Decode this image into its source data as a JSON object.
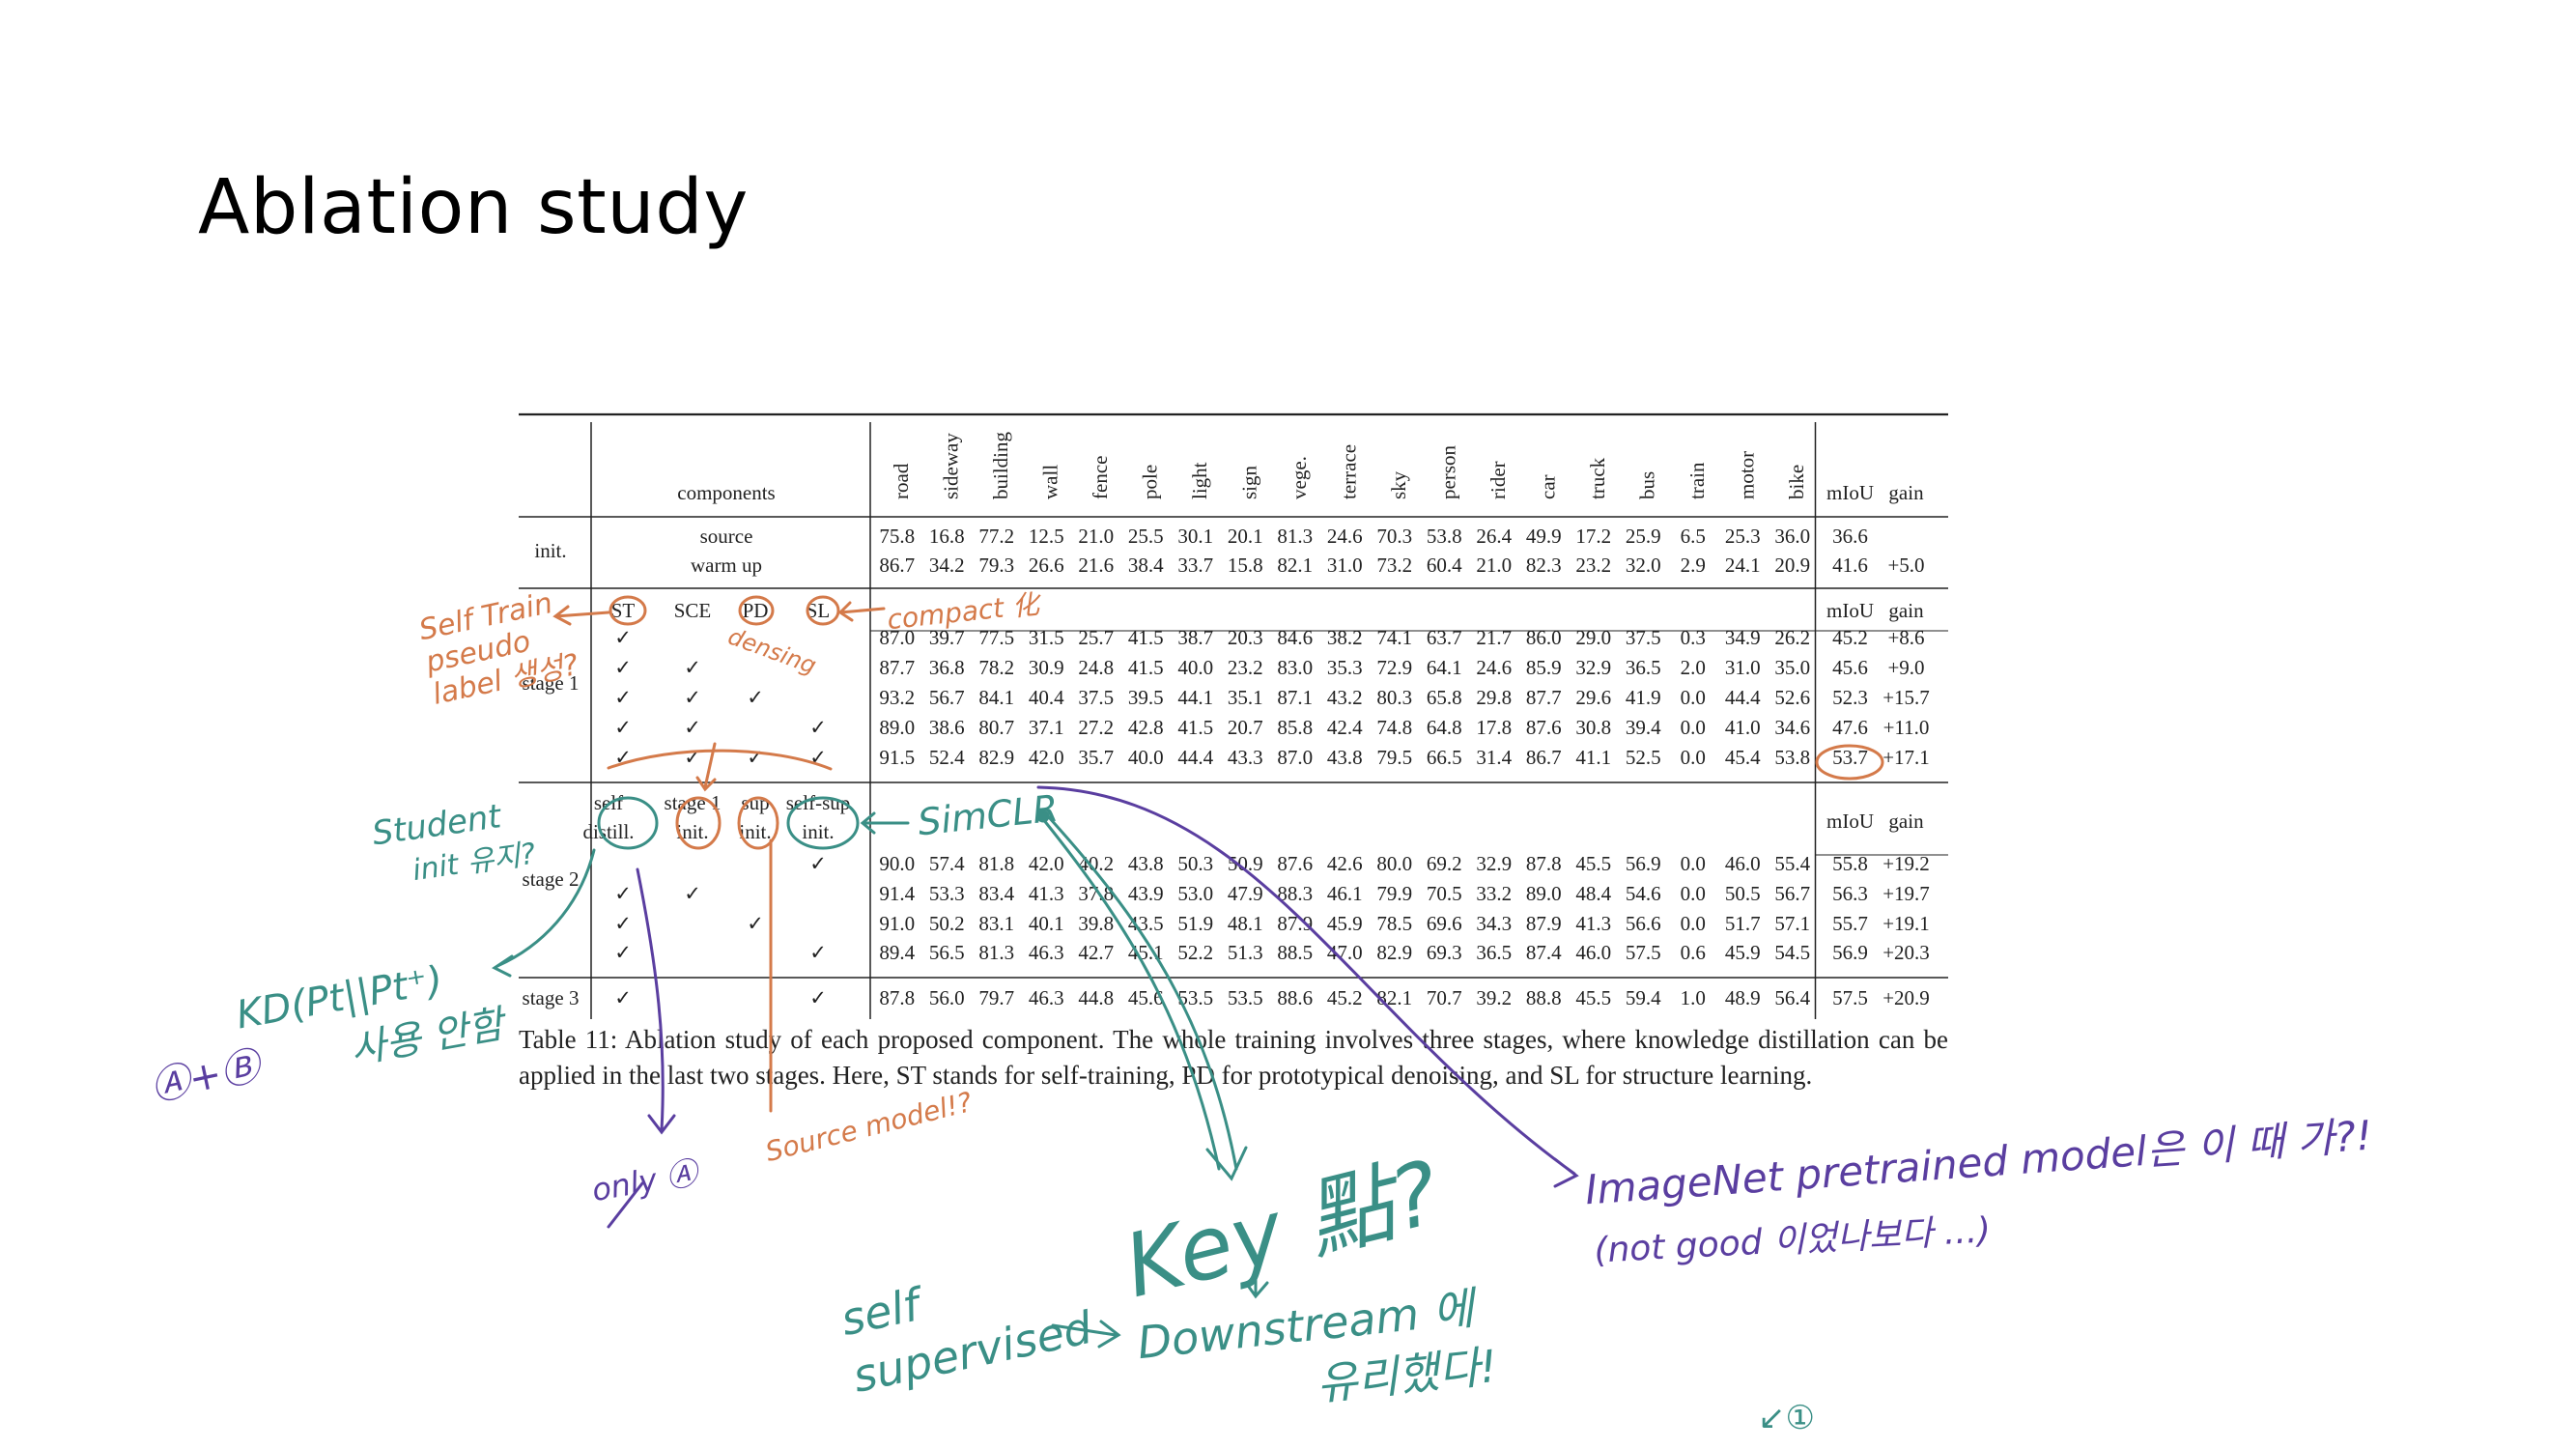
{
  "slide": {
    "title": "Ablation study"
  },
  "table": {
    "header": {
      "components": "components",
      "classes": [
        "road",
        "sideway",
        "building",
        "wall",
        "fence",
        "pole",
        "light",
        "sign",
        "vege.",
        "terrace",
        "sky",
        "person",
        "rider",
        "car",
        "truck",
        "bus",
        "train",
        "motor",
        "bike"
      ],
      "miou": "mIoU",
      "gain": "gain"
    },
    "init": {
      "label": "init.",
      "rows": [
        {
          "name": "source",
          "values": [
            "75.8",
            "16.8",
            "77.2",
            "12.5",
            "21.0",
            "25.5",
            "30.1",
            "20.1",
            "81.3",
            "24.6",
            "70.3",
            "53.8",
            "26.4",
            "49.9",
            "17.2",
            "25.9",
            "6.5",
            "25.3",
            "36.0"
          ],
          "miou": "36.6",
          "gain": ""
        },
        {
          "name": "warm up",
          "values": [
            "86.7",
            "34.2",
            "79.3",
            "26.6",
            "21.6",
            "38.4",
            "33.7",
            "15.8",
            "82.1",
            "31.0",
            "73.2",
            "60.4",
            "21.0",
            "82.3",
            "23.2",
            "32.0",
            "2.9",
            "24.1",
            "20.9"
          ],
          "miou": "41.6",
          "gain": "+5.0"
        }
      ]
    },
    "stage1": {
      "label": "stage 1",
      "components": [
        "ST",
        "SCE",
        "PD",
        "SL"
      ],
      "miou": "mIoU",
      "gain": "gain",
      "rows": [
        {
          "checks": [
            true,
            false,
            false,
            false
          ],
          "values": [
            "87.0",
            "39.7",
            "77.5",
            "31.5",
            "25.7",
            "41.5",
            "38.7",
            "20.3",
            "84.6",
            "38.2",
            "74.1",
            "63.7",
            "21.7",
            "86.0",
            "29.0",
            "37.5",
            "0.3",
            "34.9",
            "26.2"
          ],
          "miou": "45.2",
          "gain": "+8.6"
        },
        {
          "checks": [
            true,
            true,
            false,
            false
          ],
          "values": [
            "87.7",
            "36.8",
            "78.2",
            "30.9",
            "24.8",
            "41.5",
            "40.0",
            "23.2",
            "83.0",
            "35.3",
            "72.9",
            "64.1",
            "24.6",
            "85.9",
            "32.9",
            "36.5",
            "2.0",
            "31.0",
            "35.0"
          ],
          "miou": "45.6",
          "gain": "+9.0"
        },
        {
          "checks": [
            true,
            true,
            true,
            false
          ],
          "values": [
            "93.2",
            "56.7",
            "84.1",
            "40.4",
            "37.5",
            "39.5",
            "44.1",
            "35.1",
            "87.1",
            "43.2",
            "80.3",
            "65.8",
            "29.8",
            "87.7",
            "29.6",
            "41.9",
            "0.0",
            "44.4",
            "52.6"
          ],
          "miou": "52.3",
          "gain": "+15.7"
        },
        {
          "checks": [
            true,
            true,
            false,
            true
          ],
          "values": [
            "89.0",
            "38.6",
            "80.7",
            "37.1",
            "27.2",
            "42.8",
            "41.5",
            "20.7",
            "85.8",
            "42.4",
            "74.8",
            "64.8",
            "17.8",
            "87.6",
            "30.8",
            "39.4",
            "0.0",
            "41.0",
            "34.6"
          ],
          "miou": "47.6",
          "gain": "+11.0"
        },
        {
          "checks": [
            true,
            true,
            true,
            true
          ],
          "values": [
            "91.5",
            "52.4",
            "82.9",
            "42.0",
            "35.7",
            "40.0",
            "44.4",
            "43.3",
            "87.0",
            "43.8",
            "79.5",
            "66.5",
            "31.4",
            "86.7",
            "41.1",
            "52.5",
            "0.0",
            "45.4",
            "53.8"
          ],
          "miou": "53.7",
          "gain": "+17.1"
        }
      ]
    },
    "stage2": {
      "label": "stage 2",
      "components": [
        [
          "self",
          "distill."
        ],
        [
          "stage 1",
          "init."
        ],
        [
          "sup",
          "init."
        ],
        [
          "self-sup",
          "init."
        ]
      ],
      "miou": "mIoU",
      "gain": "gain",
      "rows": [
        {
          "checks": [
            false,
            false,
            false,
            true
          ],
          "values": [
            "90.0",
            "57.4",
            "81.8",
            "42.0",
            "40.2",
            "43.8",
            "50.3",
            "50.9",
            "87.6",
            "42.6",
            "80.0",
            "69.2",
            "32.9",
            "87.8",
            "45.5",
            "56.9",
            "0.0",
            "46.0",
            "55.4"
          ],
          "miou": "55.8",
          "gain": "+19.2"
        },
        {
          "checks": [
            true,
            true,
            false,
            false
          ],
          "values": [
            "91.4",
            "53.3",
            "83.4",
            "41.3",
            "37.8",
            "43.9",
            "53.0",
            "47.9",
            "88.3",
            "46.1",
            "79.9",
            "70.5",
            "33.2",
            "89.0",
            "48.4",
            "54.6",
            "0.0",
            "50.5",
            "56.7"
          ],
          "miou": "56.3",
          "gain": "+19.7"
        },
        {
          "checks": [
            true,
            false,
            true,
            false
          ],
          "values": [
            "91.0",
            "50.2",
            "83.1",
            "40.1",
            "39.8",
            "43.5",
            "51.9",
            "48.1",
            "87.9",
            "45.9",
            "78.5",
            "69.6",
            "34.3",
            "87.9",
            "41.3",
            "56.6",
            "0.0",
            "51.7",
            "57.1"
          ],
          "miou": "55.7",
          "gain": "+19.1"
        },
        {
          "checks": [
            true,
            false,
            false,
            true
          ],
          "values": [
            "89.4",
            "56.5",
            "81.3",
            "46.3",
            "42.7",
            "45.1",
            "52.2",
            "51.3",
            "88.5",
            "47.0",
            "82.9",
            "69.3",
            "36.5",
            "87.4",
            "46.0",
            "57.5",
            "0.6",
            "45.9",
            "54.5"
          ],
          "miou": "56.9",
          "gain": "+20.3"
        }
      ]
    },
    "stage3": {
      "label": "stage 3",
      "checks": [
        true,
        false,
        false,
        true
      ],
      "values": [
        "87.8",
        "56.0",
        "79.7",
        "46.3",
        "44.8",
        "45.6",
        "53.5",
        "53.5",
        "88.6",
        "45.2",
        "82.1",
        "70.7",
        "39.2",
        "88.8",
        "45.5",
        "59.4",
        "1.0",
        "48.9",
        "56.4"
      ],
      "miou": "57.5",
      "gain": "+20.9"
    },
    "check_mark": "✓",
    "caption": "Table 11: Ablation study of each proposed component. The whole training involves three stages, where knowledge distillation can be applied in the last two stages. Here, ST stands for self-training, PD for prototypical denoising, and SL for structure learning."
  },
  "annotations": {
    "self_train": [
      "Self Train",
      "pseudo",
      "label 생성?"
    ],
    "compact": "compact 化",
    "densing": "densing",
    "student_init": [
      "Student",
      "init 유지?"
    ],
    "simclr": "SimCLR",
    "kd": [
      "KD(Pt||Pt⁺)",
      "사용 안함"
    ],
    "a_plus_b": "Ⓐ+Ⓑ",
    "only_a": "only Ⓐ",
    "source_model": "Source model!?",
    "key": "Key 點?",
    "self_supervised": [
      "self",
      "supervised"
    ],
    "downstream": [
      "Downstream 에",
      "유리했다!"
    ],
    "imagenet": "ImageNet pretrained model은 이 때 가?!",
    "not_good": "(not good 이었나보다 ...)",
    "circled_one": "↙①"
  },
  "colors": {
    "orange": "#d47a4a",
    "green": "#3a8f86",
    "purple": "#5a3ea0"
  }
}
